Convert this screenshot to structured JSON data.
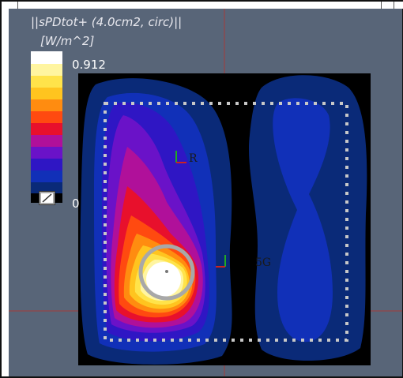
{
  "title": "||sPDtot+ (4.0cm2, circ)||",
  "units": "[W/m^2]",
  "colorbar": {
    "max_label": "0.912",
    "min_label": "0",
    "colors": [
      "#ffffff",
      "#fff5a0",
      "#ffe34a",
      "#ffc41f",
      "#ff8c10",
      "#ff4a10",
      "#e8102c",
      "#b0109a",
      "#6a12c8",
      "#2f16c4",
      "#1130b8",
      "#0a2a78",
      "#000000"
    ]
  },
  "scene": {
    "label_r": "R",
    "label_5g": "5G"
  },
  "colors": {
    "background": "#586578",
    "frame": "#111111",
    "reference_line": "#a33a3a",
    "measurement_area": "#c8c8c8"
  }
}
